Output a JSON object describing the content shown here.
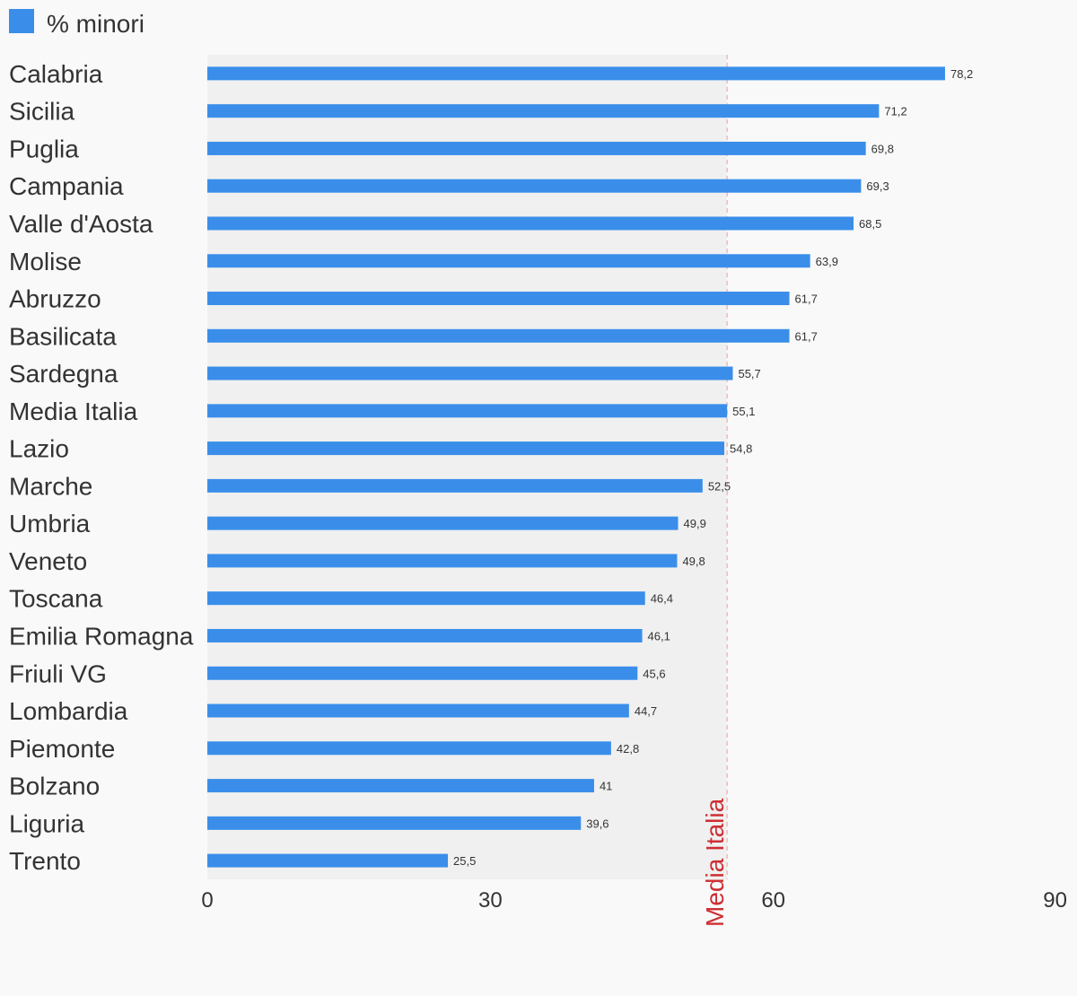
{
  "chart_data": {
    "type": "bar",
    "orientation": "horizontal",
    "series": [
      {
        "name": "% minori",
        "color": "#3a8eea",
        "values": [
          78.2,
          71.2,
          69.8,
          69.3,
          68.5,
          63.9,
          61.7,
          61.7,
          55.7,
          55.1,
          54.8,
          52.5,
          49.9,
          49.8,
          46.4,
          46.1,
          45.6,
          44.7,
          42.8,
          41,
          39.6,
          25.5
        ]
      }
    ],
    "categories": [
      "Calabria",
      "Sicilia",
      "Puglia",
      "Campania",
      "Valle d'Aosta",
      "Molise",
      "Abruzzo",
      "Basilicata",
      "Sardegna",
      "Media Italia",
      "Lazio",
      "Marche",
      "Umbria",
      "Veneto",
      "Toscana",
      "Emilia Romagna",
      "Friuli VG",
      "Lombardia",
      "Piemonte",
      "Bolzano",
      "Liguria",
      "Trento"
    ],
    "value_labels": [
      "78,2",
      "71,2",
      "69,8",
      "69,3",
      "68,5",
      "63,9",
      "61,7",
      "61,7",
      "55,7",
      "55,1",
      "54,8",
      "52,5",
      "49,9",
      "49,8",
      "46,4",
      "46,1",
      "45,6",
      "44,7",
      "42,8",
      "41",
      "39,6",
      "25,5"
    ],
    "x_ticks": [
      0,
      30,
      60,
      90
    ],
    "xlim": [
      0,
      90
    ],
    "grid": false,
    "legend": {
      "position": "top-left",
      "label": "% minori"
    },
    "reference_line": {
      "value": 55.1,
      "label": "Media Italia",
      "color": "#cc2f33"
    },
    "shaded_band": {
      "from": 0,
      "to": 55.1,
      "color": "#f0f0f0"
    }
  }
}
